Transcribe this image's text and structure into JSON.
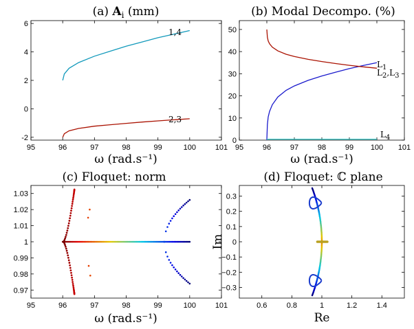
{
  "colors": {
    "cyan": "#1199bb",
    "darkred": "#aa1100",
    "blue": "#1a1acc",
    "lightcyan": "#44cccc",
    "green": "#33aa33"
  },
  "chart_data": [
    {
      "id": "a",
      "type": "line",
      "title": "(a) A_i (mm)",
      "title_prefix": "(a) ",
      "title_bold": "A",
      "title_sub": "i",
      "title_suffix": " (mm)",
      "xlabel": "ω (rad.s⁻¹)",
      "ylabel": "",
      "xlim": [
        95,
        101
      ],
      "ylim": [
        -2.2,
        6.2
      ],
      "xticks": [
        95,
        96,
        97,
        98,
        99,
        100,
        101
      ],
      "yticks": [
        -2,
        0,
        2,
        4,
        6
      ],
      "series": [
        {
          "name": "1,4",
          "color": "#1199bb",
          "x": [
            96.0,
            96.05,
            96.2,
            96.5,
            97,
            97.5,
            98,
            98.5,
            99,
            99.5,
            100
          ],
          "y": [
            2.0,
            2.45,
            2.85,
            3.25,
            3.7,
            4.05,
            4.4,
            4.7,
            5.0,
            5.25,
            5.5
          ]
        },
        {
          "name": "2,3",
          "color": "#aa1100",
          "x": [
            96.0,
            96.05,
            96.2,
            96.5,
            97,
            97.5,
            98,
            98.5,
            99,
            99.5,
            100
          ],
          "y": [
            -2.0,
            -1.75,
            -1.55,
            -1.38,
            -1.22,
            -1.12,
            -1.02,
            -0.93,
            -0.85,
            -0.77,
            -0.7
          ]
        }
      ]
    },
    {
      "id": "b",
      "type": "line",
      "title": "(b) Modal Decompo. (%)",
      "xlabel": "ω (rad.s⁻¹)",
      "ylabel": "",
      "xlim": [
        95,
        101
      ],
      "ylim": [
        0,
        54
      ],
      "xticks": [
        95,
        96,
        97,
        98,
        99,
        100,
        101
      ],
      "yticks": [
        0,
        10,
        20,
        30,
        40,
        50
      ],
      "series": [
        {
          "name": "L1",
          "label_main": "L",
          "label_sub": "1",
          "color": "#1a1acc",
          "x": [
            96.0,
            96.02,
            96.05,
            96.1,
            96.2,
            96.4,
            96.7,
            97,
            97.5,
            98,
            98.5,
            99,
            99.5,
            100
          ],
          "y": [
            0,
            7,
            10.5,
            13,
            16,
            19.5,
            22.5,
            24.5,
            27,
            29,
            30.7,
            32.3,
            33.7,
            35
          ]
        },
        {
          "name": "L2,L3",
          "label_main": "L",
          "label_sub": "2",
          "label_sep": ",L",
          "label_sub2": "3",
          "color": "#aa1100",
          "x": [
            96.0,
            96.02,
            96.05,
            96.1,
            96.2,
            96.4,
            96.7,
            97,
            97.5,
            98,
            98.5,
            99,
            99.5,
            100
          ],
          "y": [
            50,
            46.5,
            44.8,
            43.5,
            42,
            40.3,
            38.8,
            37.8,
            36.5,
            35.5,
            34.6,
            33.8,
            33.1,
            32.5
          ]
        },
        {
          "name": "L4",
          "label_main": "L",
          "label_sub": "4",
          "color": "#44cccc",
          "x": [
            96.0,
            100
          ],
          "y": [
            0.4,
            0.4
          ]
        }
      ]
    },
    {
      "id": "c",
      "type": "scatter",
      "title": "(c) Floquet: norm",
      "xlabel": "ω (rad.s⁻¹)",
      "ylabel": "",
      "xlim": [
        95,
        101
      ],
      "ylim": [
        0.965,
        1.035
      ],
      "xticks": [
        95,
        96,
        97,
        98,
        99,
        100,
        101
      ],
      "yticks": [
        0.97,
        0.98,
        0.99,
        1,
        1.01,
        1.02,
        1.03
      ],
      "ytick_labels": [
        "0.97",
        "0.98",
        "0.99",
        "1",
        "1.01",
        "1.02",
        "1.03"
      ],
      "color_scale": {
        "x_min": 96.0,
        "x_max": 100.0
      }
    },
    {
      "id": "d",
      "type": "scatter",
      "title": "(d) Floquet: ℂ plane",
      "xlabel": "Re",
      "ylabel": "Im",
      "xlim": [
        0.45,
        1.55
      ],
      "ylim": [
        -0.37,
        0.37
      ],
      "xticks": [
        0.6,
        0.8,
        1,
        1.2,
        1.4
      ],
      "xtick_labels": [
        "0.6",
        "0.8",
        "1",
        "1.2",
        "1.4"
      ],
      "yticks": [
        -0.3,
        -0.2,
        -0.1,
        0,
        0.1,
        0.2,
        0.3
      ],
      "ytick_labels": [
        "−0.3",
        "−0.2",
        "−0.1",
        "0",
        "0.1",
        "0.2",
        "0.3"
      ]
    }
  ]
}
